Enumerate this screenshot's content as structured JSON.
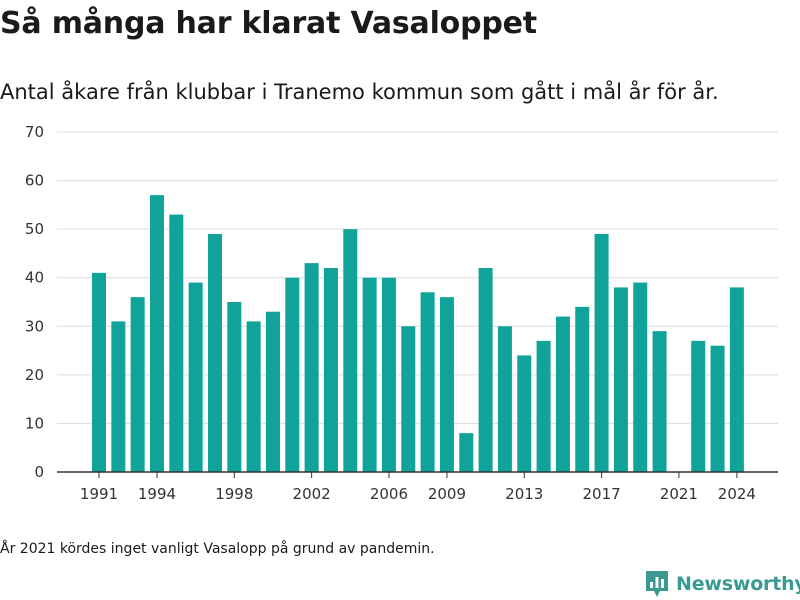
{
  "header": {
    "title": "Så många har klarat Vasaloppet",
    "subtitle": "Antal åkare från klubbar i Tranemo kommun som gått i mål år för år."
  },
  "footnote": "År 2021 kördes inget vanligt Vasalopp på grund av pandemin.",
  "brand": {
    "name": "Newsworthy",
    "logo_icon": "bar-chart-pin-icon",
    "color": "#3a9a92"
  },
  "chart_data": {
    "type": "bar",
    "title": "",
    "xlabel": "",
    "ylabel": "",
    "ylim": [
      0,
      70
    ],
    "yticks": [
      0,
      10,
      20,
      30,
      40,
      50,
      60,
      70
    ],
    "x_tick_labels": [
      "1991",
      "1994",
      "1998",
      "2002",
      "2006",
      "2009",
      "2013",
      "2017",
      "2021",
      "2024"
    ],
    "bar_color": "#0fa39a",
    "grid": true,
    "categories": [
      "1991",
      "1992",
      "1993",
      "1994",
      "1995",
      "1996",
      "1997",
      "1998",
      "1999",
      "2000",
      "2001",
      "2002",
      "2003",
      "2004",
      "2005",
      "2006",
      "2007",
      "2008",
      "2009",
      "2010",
      "2011",
      "2012",
      "2013",
      "2014",
      "2015",
      "2016",
      "2017",
      "2018",
      "2019",
      "2020",
      "2021",
      "2022",
      "2023",
      "2024"
    ],
    "values": [
      41,
      31,
      36,
      57,
      53,
      39,
      49,
      35,
      31,
      33,
      40,
      43,
      42,
      50,
      40,
      40,
      30,
      37,
      36,
      8,
      42,
      30,
      24,
      27,
      32,
      34,
      49,
      38,
      39,
      29,
      null,
      27,
      26,
      38
    ]
  }
}
